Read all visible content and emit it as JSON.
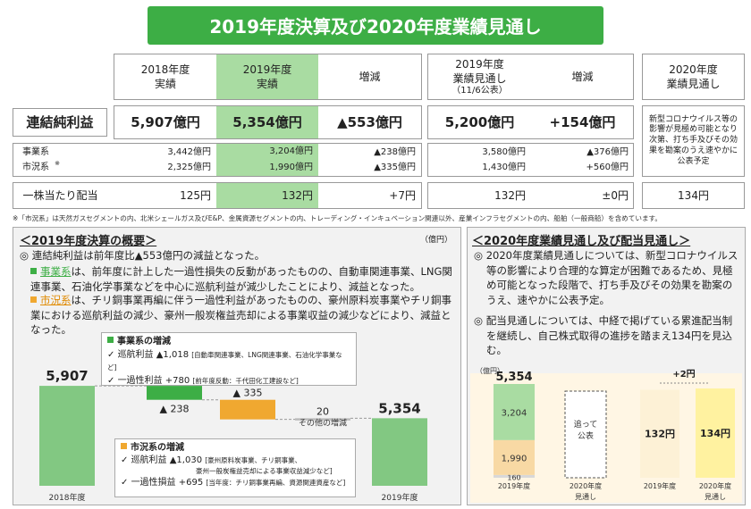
{
  "title": "2019年度決算及び2020年度業績見通し",
  "table": {
    "headers": {
      "y2018": "2018年度\n実績",
      "y2019": "2019年度\n実績",
      "diff": "増減",
      "fc2019": "2019年度\n業績見通し",
      "fc_date": "（11/6公表）",
      "diff2": "増減",
      "fc2020": "2020年度\n業績見通し"
    },
    "net_income": {
      "label": "連結純利益",
      "y2018": "5,907億円",
      "y2019": "5,354億円",
      "diff": "▲553億円",
      "fc2019": "5,200億円",
      "diff2": "+154億円",
      "fc2020": "新型コロナウイルス等の影響が見極め可能となり次第、打ち手及びその効果を勘案のうえ速やかに公表予定"
    },
    "business": {
      "label": "事業系",
      "y2018": "3,442億円",
      "y2019": "3,204億円",
      "diff": "▲238億円",
      "fc2019": "3,580億円",
      "diff2": "▲376億円"
    },
    "market": {
      "label": "市況系",
      "mark": "※",
      "y2018": "2,325億円",
      "y2019": "1,990億円",
      "diff": "▲335億円",
      "fc2019": "1,430億円",
      "diff2": "+560億円"
    },
    "dividend": {
      "label": "一株当たり配当",
      "y2018": "125円",
      "y2019": "132円",
      "diff": "+7円",
      "fc2019": "132円",
      "diff2": "±0円",
      "fc2020": "134円"
    }
  },
  "footnote": "※「市況系」は天然ガスセグメントの内、北米シェールガス及びE&P、金属資源セグメントの内、トレーディング・インキュベーション関連以外、産業インフラセグメントの内、船舶（一般商船）を含めています。",
  "left": {
    "title": "＜2019年度決算の概要＞",
    "unit": "（億円）",
    "summary": "連結純利益は前年度比▲553億円の減益となった。",
    "bullet1_head": "事業系",
    "bullet1": "は、前年度に計上した一過性損失の反動があったものの、自動車関連事業、LNG関連事業、石油化学事業などを中心に巡航利益が減少したことにより、減益となった。",
    "bullet2_head": "市況系",
    "bullet2": "は、チリ銅事業再編に伴う一過性利益があったものの、豪州原料炭事業やチリ銅事業における巡航利益の減少、豪州一般炭権益売却による事業収益の減少などにより、減益となった。",
    "biz_box": {
      "title": "事業系の増減",
      "l1": "巡航利益 ▲1,018",
      "l1n": "[自動車関連事業、LNG関連事業、石油化学事業など]",
      "l2": "一過性利益 +780",
      "l2n": "[前年度反動：千代田化工建設など]"
    },
    "mkt_box": {
      "title": "市況系の増減",
      "l1": "巡航利益 ▲1,030",
      "l1n": "[豪州原料炭事業、チリ銅事業、",
      "l1n2": "豪州一般炭権益売却による事業収益減少など]",
      "l2": "一過性損益 +695",
      "l2n": "[当年度：チリ銅事業再編、資源関連資産など]"
    }
  },
  "right": {
    "title": "＜2020年度業績見通し及び配当見通し＞",
    "p1": "2020年度業績見通しについては、新型コロナウイルス等の影響により合理的な算定が困難であるため、見極め可能となった段階で、打ち手及びその効果を勘案のうえ、速やかに公表予定。",
    "p2": "配当見通しについては、中経で掲げている累進配当制を継続し、自己株式取得の進捗を踏まえ134円を見込む。"
  },
  "chart_data": [
    {
      "type": "bar",
      "subtype": "waterfall",
      "unit": "億円",
      "categories": [
        "2018年度",
        "事業系",
        "市況系",
        "その他の増減",
        "2019年度"
      ],
      "values": [
        5907,
        -238,
        -335,
        20,
        5354
      ],
      "labels": [
        "5,907",
        "▲ 238",
        "▲ 335",
        "20",
        "5,354"
      ],
      "annotations": [
        "その他の増減"
      ],
      "colors": {
        "total": "#82c882",
        "business": "#3dae45",
        "market": "#f0a830"
      }
    },
    {
      "type": "bar",
      "subtype": "stacked",
      "unit": "（億円）",
      "categories": [
        "2019年度",
        "2020年度\n見通し"
      ],
      "total_label": "5,354",
      "series": [
        {
          "name": "事業系",
          "values": [
            3204,
            null
          ],
          "color": "#a9dca2"
        },
        {
          "name": "市況系",
          "values": [
            1990,
            null
          ],
          "color": "#f8d9a4"
        },
        {
          "name": "その他",
          "values": [
            160,
            null
          ],
          "color": "#d8d8d8"
        }
      ],
      "annotation": "追って\n公表"
    },
    {
      "type": "bar",
      "categories": [
        "2019年度",
        "2020年度\n見通し"
      ],
      "values": [
        132,
        134
      ],
      "labels": [
        "132円",
        "134円"
      ],
      "delta_label": "+2円",
      "colors": [
        "#fdf1d6",
        "#fff2a0"
      ]
    }
  ]
}
